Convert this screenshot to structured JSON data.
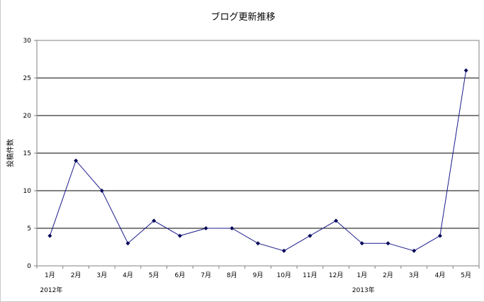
{
  "chart_data": {
    "type": "line",
    "title": "ブログ更新推移",
    "ylabel": "投稿件数",
    "xlabel": "",
    "categories": [
      "1月",
      "2月",
      "3月",
      "4月",
      "5月",
      "6月",
      "7月",
      "8月",
      "9月",
      "10月",
      "11月",
      "12月",
      "1月",
      "2月",
      "3月",
      "4月",
      "5月"
    ],
    "year_labels": [
      {
        "label": "2012年",
        "index": 0
      },
      {
        "label": "2013年",
        "index": 12
      }
    ],
    "series": [
      {
        "values": [
          4,
          14,
          10,
          3,
          6,
          4,
          5,
          5,
          3,
          2,
          4,
          6,
          3,
          3,
          2,
          4,
          26
        ]
      }
    ],
    "ylim": [
      0,
      30
    ],
    "yticks": [
      0,
      5,
      10,
      15,
      20,
      25,
      30
    ],
    "grid": true,
    "colors": {
      "line": "#1a1a8c",
      "marker": "#0a0a5a",
      "grid": "#000000",
      "axis": "#808080"
    }
  }
}
